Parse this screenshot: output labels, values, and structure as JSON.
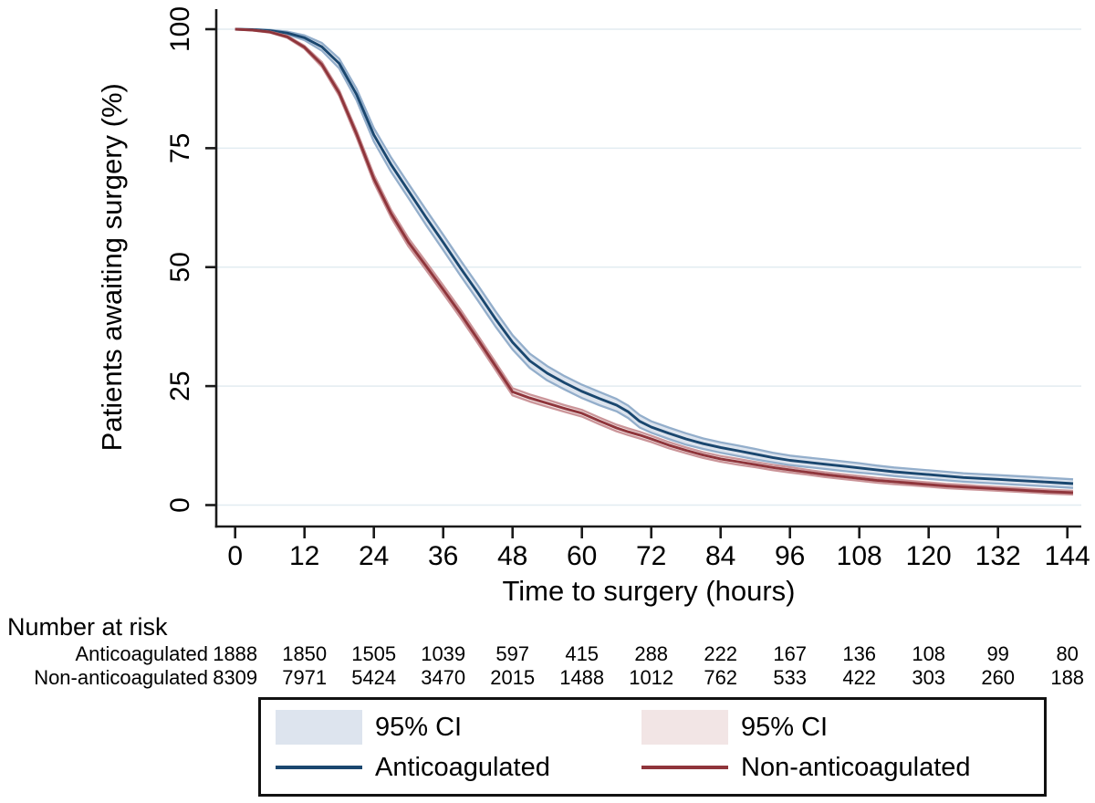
{
  "chart_data": {
    "type": "line",
    "title": "",
    "xlabel": "Time to surgery (hours)",
    "ylabel": "Patients awaiting surgery (%)",
    "xlim": [
      0,
      145
    ],
    "ylim": [
      0,
      100
    ],
    "x_ticks": [
      0,
      12,
      24,
      36,
      48,
      60,
      72,
      84,
      96,
      108,
      120,
      132,
      144
    ],
    "y_ticks": [
      0,
      25,
      50,
      75,
      100
    ],
    "grid": true,
    "legend_position": "bottom",
    "gridline_color": "#e2ecf1",
    "axis_color": "#1a1a1a",
    "series": [
      {
        "name": "Anticoagulated",
        "ci_label": "95% CI",
        "line_color": "#1a476f",
        "ci_edge_color": "#93aecb",
        "ci_fill_color": "#dde4ee",
        "points": [
          [
            0,
            100,
            0
          ],
          [
            3,
            99.9,
            0.1
          ],
          [
            6,
            99.7,
            0.15
          ],
          [
            9,
            99.2,
            0.3
          ],
          [
            12,
            98.2,
            0.5
          ],
          [
            15,
            96.3,
            0.8
          ],
          [
            18,
            92.8,
            1.0
          ],
          [
            21,
            86.3,
            1.2
          ],
          [
            24,
            77.8,
            1.4
          ],
          [
            27,
            71.5,
            1.5
          ],
          [
            30,
            66.0,
            1.5
          ],
          [
            33,
            60.5,
            1.6
          ],
          [
            36,
            55.2,
            1.6
          ],
          [
            39,
            49.8,
            1.6
          ],
          [
            42,
            44.6,
            1.6
          ],
          [
            45,
            39.2,
            1.6
          ],
          [
            48,
            34.2,
            1.5
          ],
          [
            51,
            30.3,
            1.5
          ],
          [
            54,
            27.7,
            1.5
          ],
          [
            57,
            25.7,
            1.4
          ],
          [
            60,
            23.9,
            1.4
          ],
          [
            63,
            22.4,
            1.4
          ],
          [
            66,
            21.0,
            1.3
          ],
          [
            68,
            19.6,
            1.3
          ],
          [
            70,
            17.6,
            1.3
          ],
          [
            72,
            16.4,
            1.2
          ],
          [
            75,
            15.1,
            1.2
          ],
          [
            78,
            13.9,
            1.2
          ],
          [
            81,
            12.9,
            1.1
          ],
          [
            84,
            12.1,
            1.1
          ],
          [
            87,
            11.4,
            1.1
          ],
          [
            90,
            10.7,
            1.1
          ],
          [
            93,
            10.0,
            1.0
          ],
          [
            96,
            9.4,
            1.0
          ],
          [
            99,
            9.0,
            1.0
          ],
          [
            102,
            8.6,
            1.0
          ],
          [
            105,
            8.2,
            1.0
          ],
          [
            108,
            7.8,
            1.0
          ],
          [
            111,
            7.4,
            0.9
          ],
          [
            114,
            7.0,
            0.9
          ],
          [
            117,
            6.7,
            0.9
          ],
          [
            120,
            6.4,
            0.9
          ],
          [
            123,
            6.1,
            0.9
          ],
          [
            126,
            5.8,
            0.9
          ],
          [
            129,
            5.6,
            0.9
          ],
          [
            132,
            5.4,
            0.9
          ],
          [
            135,
            5.2,
            0.9
          ],
          [
            138,
            5.0,
            0.9
          ],
          [
            141,
            4.8,
            0.9
          ],
          [
            145,
            4.5,
            0.9
          ]
        ]
      },
      {
        "name": "Non-anticoagulated",
        "ci_label": "95% CI",
        "line_color": "#8f353b",
        "ci_edge_color": "#cb9599",
        "ci_fill_color": "#f2e5e5",
        "points": [
          [
            0,
            100,
            0
          ],
          [
            3,
            99.8,
            0.05
          ],
          [
            6,
            99.4,
            0.1
          ],
          [
            9,
            98.4,
            0.2
          ],
          [
            12,
            96.2,
            0.3
          ],
          [
            15,
            92.6,
            0.5
          ],
          [
            18,
            86.6,
            0.6
          ],
          [
            21,
            78.0,
            0.7
          ],
          [
            24,
            68.6,
            0.8
          ],
          [
            27,
            61.2,
            0.8
          ],
          [
            30,
            55.2,
            0.85
          ],
          [
            33,
            50.3,
            0.85
          ],
          [
            36,
            45.3,
            0.85
          ],
          [
            39,
            40.2,
            0.85
          ],
          [
            42,
            34.8,
            0.8
          ],
          [
            45,
            29.3,
            0.8
          ],
          [
            48,
            23.8,
            0.75
          ],
          [
            51,
            22.5,
            0.75
          ],
          [
            54,
            21.4,
            0.75
          ],
          [
            57,
            20.3,
            0.7
          ],
          [
            60,
            19.3,
            0.7
          ],
          [
            63,
            17.7,
            0.7
          ],
          [
            66,
            16.2,
            0.7
          ],
          [
            68,
            15.4,
            0.7
          ],
          [
            70,
            14.7,
            0.7
          ],
          [
            72,
            13.9,
            0.65
          ],
          [
            75,
            12.6,
            0.65
          ],
          [
            78,
            11.5,
            0.6
          ],
          [
            81,
            10.5,
            0.6
          ],
          [
            84,
            9.7,
            0.6
          ],
          [
            87,
            9.1,
            0.6
          ],
          [
            90,
            8.5,
            0.55
          ],
          [
            93,
            7.9,
            0.55
          ],
          [
            96,
            7.4,
            0.55
          ],
          [
            99,
            6.9,
            0.5
          ],
          [
            102,
            6.4,
            0.5
          ],
          [
            105,
            6.0,
            0.5
          ],
          [
            108,
            5.6,
            0.5
          ],
          [
            111,
            5.2,
            0.5
          ],
          [
            114,
            4.9,
            0.5
          ],
          [
            117,
            4.6,
            0.45
          ],
          [
            120,
            4.3,
            0.45
          ],
          [
            123,
            4.0,
            0.45
          ],
          [
            126,
            3.8,
            0.45
          ],
          [
            129,
            3.6,
            0.4
          ],
          [
            132,
            3.4,
            0.4
          ],
          [
            135,
            3.2,
            0.4
          ],
          [
            138,
            3.0,
            0.4
          ],
          [
            141,
            2.8,
            0.4
          ],
          [
            145,
            2.6,
            0.4
          ]
        ]
      }
    ]
  },
  "risk_table": {
    "heading": "Number at risk",
    "times": [
      0,
      12,
      24,
      36,
      48,
      60,
      72,
      84,
      96,
      108,
      120,
      132,
      144
    ],
    "rows": [
      {
        "label": "Anticoagulated",
        "values": [
          "1888",
          "1850",
          "1505",
          "1039",
          "597",
          "415",
          "288",
          "222",
          "167",
          "136",
          "108",
          "99",
          "80"
        ]
      },
      {
        "label": "Non-anticoagulated",
        "values": [
          "8309",
          "7971",
          "5424",
          "3470",
          "2015",
          "1488",
          "1012",
          "762",
          "533",
          "422",
          "303",
          "260",
          "188"
        ]
      }
    ]
  },
  "legend": {
    "ci_anticoagulated": "95% CI",
    "ci_non_anticoagulated": "95% CI",
    "anticoagulated": "Anticoagulated",
    "non_anticoagulated": "Non-anticoagulated"
  }
}
